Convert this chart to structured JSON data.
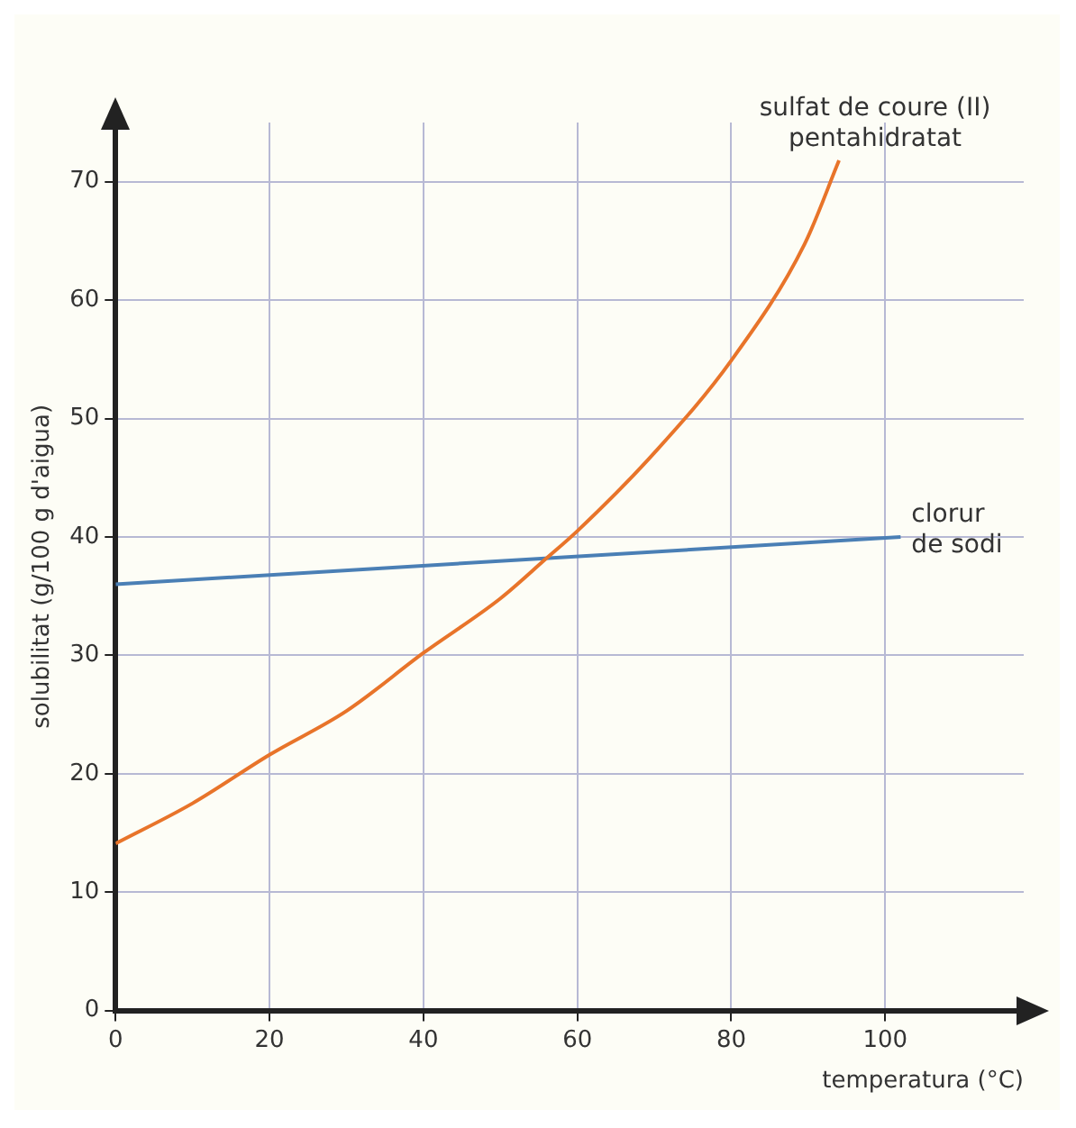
{
  "chart_data": {
    "type": "line",
    "xlabel": "temperatura (°C)",
    "ylabel": "solubilitat (g/100 g d'aigua)",
    "xlim": [
      0,
      118
    ],
    "ylim": [
      0,
      75
    ],
    "xticks": [
      0,
      20,
      40,
      60,
      80,
      100
    ],
    "yticks": [
      0,
      10,
      20,
      30,
      40,
      50,
      60,
      70
    ],
    "grid": true,
    "legend": false,
    "marker": "none",
    "line_style": "solid",
    "series": [
      {
        "name": "sulfat de coure (II) pentahidratat",
        "color": "#e8742a",
        "x": [
          0,
          10,
          20,
          30,
          40,
          50,
          56,
          60,
          70,
          80,
          89.5,
          94
        ],
        "values": [
          14.1,
          17.5,
          21.6,
          25.3,
          30.2,
          34.8,
          38.2,
          40.5,
          47.1,
          54.9,
          64.7,
          71.8
        ]
      },
      {
        "name": "clorur de sodi",
        "color": "#4a7fb5",
        "x": [
          0,
          102
        ],
        "values": [
          36,
          40
        ]
      }
    ]
  }
}
